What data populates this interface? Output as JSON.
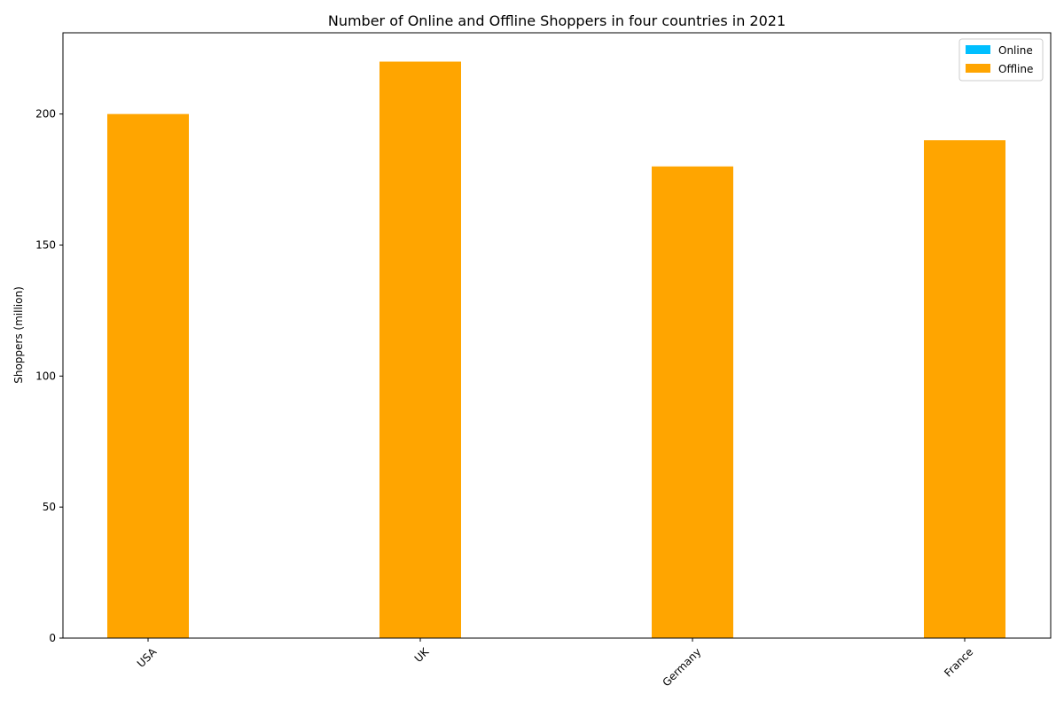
{
  "chart_data": {
    "type": "bar",
    "title": "Number of Online and Offline Shoppers in four countries in 2021",
    "xlabel": "",
    "ylabel": "Shoppers (million)",
    "categories": [
      "USA",
      "UK",
      "Germany",
      "France"
    ],
    "series": [
      {
        "name": "Online",
        "values": [
          0,
          0,
          0,
          0
        ],
        "color": "#00BFFF"
      },
      {
        "name": "Offline",
        "values": [
          200,
          220,
          180,
          190
        ],
        "color": "#FFA500"
      }
    ],
    "ylim": [
      0,
      231
    ],
    "yticks": [
      0,
      50,
      100,
      150,
      200
    ],
    "ytick_labels": [
      "0",
      "50",
      "100",
      "150",
      "200"
    ],
    "grid": false,
    "legend_position": "top-right"
  }
}
